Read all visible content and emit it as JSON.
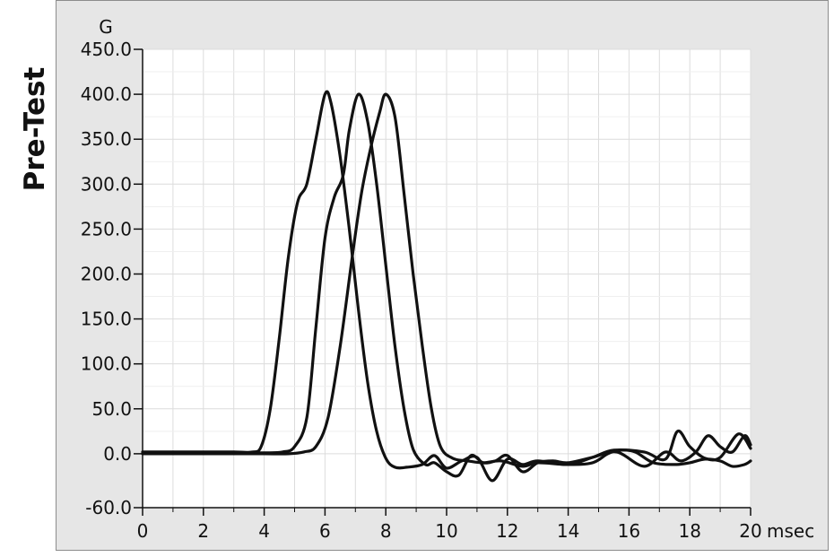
{
  "page": {
    "side_title": "Pre-Test"
  },
  "chart_data": {
    "type": "line",
    "ylabel": "G",
    "xlabel": "msec",
    "xlim": [
      0,
      20
    ],
    "ylim": [
      -60,
      450
    ],
    "x_ticks": [
      0,
      2,
      4,
      6,
      8,
      10,
      12,
      14,
      16,
      18,
      20
    ],
    "y_ticks": [
      -60,
      0,
      50,
      100,
      150,
      200,
      250,
      300,
      350,
      400,
      450
    ],
    "y_tick_labels": [
      "-60.0",
      "0.0",
      "50.0",
      "100.0",
      "150.0",
      "200.0",
      "250.0",
      "300.0",
      "350.0",
      "400.0",
      "450.0"
    ],
    "grid": true,
    "colors": {
      "line": "#111111",
      "grid": "#dcdcdc",
      "frame": "#e6e6e6",
      "plot_bg": "#ffffff"
    },
    "series": [
      {
        "points": [
          [
            0,
            2
          ],
          [
            1,
            2
          ],
          [
            2,
            2
          ],
          [
            3,
            2
          ],
          [
            3.6,
            2
          ],
          [
            3.9,
            8
          ],
          [
            4.2,
            50
          ],
          [
            4.5,
            130
          ],
          [
            4.8,
            220
          ],
          [
            5.1,
            280
          ],
          [
            5.4,
            300
          ],
          [
            5.7,
            350
          ],
          [
            6.0,
            400
          ],
          [
            6.2,
            390
          ],
          [
            6.5,
            330
          ],
          [
            6.8,
            250
          ],
          [
            7.1,
            160
          ],
          [
            7.4,
            80
          ],
          [
            7.7,
            25
          ],
          [
            8.0,
            -5
          ],
          [
            8.3,
            -15
          ],
          [
            8.7,
            -15
          ],
          [
            9.2,
            -12
          ],
          [
            9.6,
            -2
          ],
          [
            10.0,
            -16
          ],
          [
            10.5,
            -8
          ],
          [
            11.0,
            -4
          ],
          [
            11.5,
            -30
          ],
          [
            12.0,
            -6
          ],
          [
            12.5,
            -12
          ],
          [
            13.0,
            -8
          ],
          [
            14.0,
            -12
          ],
          [
            14.8,
            -4
          ],
          [
            15.5,
            4
          ],
          [
            16.5,
            2
          ],
          [
            17.2,
            -6
          ],
          [
            17.6,
            25
          ],
          [
            18.0,
            8
          ],
          [
            18.5,
            -5
          ],
          [
            19.0,
            -4
          ],
          [
            19.6,
            22
          ],
          [
            20.0,
            6
          ]
        ]
      },
      {
        "points": [
          [
            0,
            1
          ],
          [
            1,
            1
          ],
          [
            2,
            1
          ],
          [
            3,
            1
          ],
          [
            4,
            1
          ],
          [
            4.6,
            2
          ],
          [
            5.0,
            8
          ],
          [
            5.4,
            40
          ],
          [
            5.7,
            140
          ],
          [
            6.0,
            240
          ],
          [
            6.3,
            285
          ],
          [
            6.6,
            310
          ],
          [
            6.8,
            360
          ],
          [
            7.1,
            400
          ],
          [
            7.4,
            370
          ],
          [
            7.7,
            300
          ],
          [
            8.0,
            210
          ],
          [
            8.3,
            120
          ],
          [
            8.6,
            50
          ],
          [
            8.9,
            5
          ],
          [
            9.3,
            -12
          ],
          [
            9.6,
            -10
          ],
          [
            10.0,
            -20
          ],
          [
            10.4,
            -24
          ],
          [
            10.8,
            -2
          ],
          [
            11.2,
            -10
          ],
          [
            11.6,
            -8
          ],
          [
            12.0,
            -2
          ],
          [
            12.5,
            -20
          ],
          [
            13.0,
            -10
          ],
          [
            13.5,
            -8
          ],
          [
            14.0,
            -10
          ],
          [
            14.8,
            -4
          ],
          [
            15.6,
            2
          ],
          [
            16.5,
            -14
          ],
          [
            17.2,
            2
          ],
          [
            17.7,
            -8
          ],
          [
            18.2,
            2
          ],
          [
            18.6,
            20
          ],
          [
            19.0,
            8
          ],
          [
            19.4,
            2
          ],
          [
            19.8,
            20
          ],
          [
            20.0,
            10
          ]
        ]
      },
      {
        "points": [
          [
            0,
            0
          ],
          [
            1,
            0
          ],
          [
            2,
            0
          ],
          [
            3,
            0
          ],
          [
            4,
            0
          ],
          [
            4.8,
            0
          ],
          [
            5.3,
            2
          ],
          [
            5.7,
            8
          ],
          [
            6.1,
            40
          ],
          [
            6.5,
            120
          ],
          [
            6.9,
            220
          ],
          [
            7.2,
            290
          ],
          [
            7.5,
            340
          ],
          [
            7.8,
            380
          ],
          [
            8.0,
            400
          ],
          [
            8.3,
            375
          ],
          [
            8.6,
            290
          ],
          [
            8.9,
            200
          ],
          [
            9.2,
            120
          ],
          [
            9.5,
            50
          ],
          [
            9.8,
            8
          ],
          [
            10.2,
            -5
          ],
          [
            10.7,
            -8
          ],
          [
            11.2,
            -10
          ],
          [
            11.8,
            -8
          ],
          [
            12.5,
            -14
          ],
          [
            13.0,
            -10
          ],
          [
            14.0,
            -12
          ],
          [
            14.8,
            -10
          ],
          [
            15.3,
            0
          ],
          [
            15.7,
            4
          ],
          [
            16.2,
            2
          ],
          [
            16.8,
            -10
          ],
          [
            17.5,
            -12
          ],
          [
            18.0,
            -10
          ],
          [
            18.5,
            -6
          ],
          [
            19.0,
            -8
          ],
          [
            19.4,
            -14
          ],
          [
            19.8,
            -12
          ],
          [
            20.0,
            -8
          ]
        ]
      }
    ]
  }
}
